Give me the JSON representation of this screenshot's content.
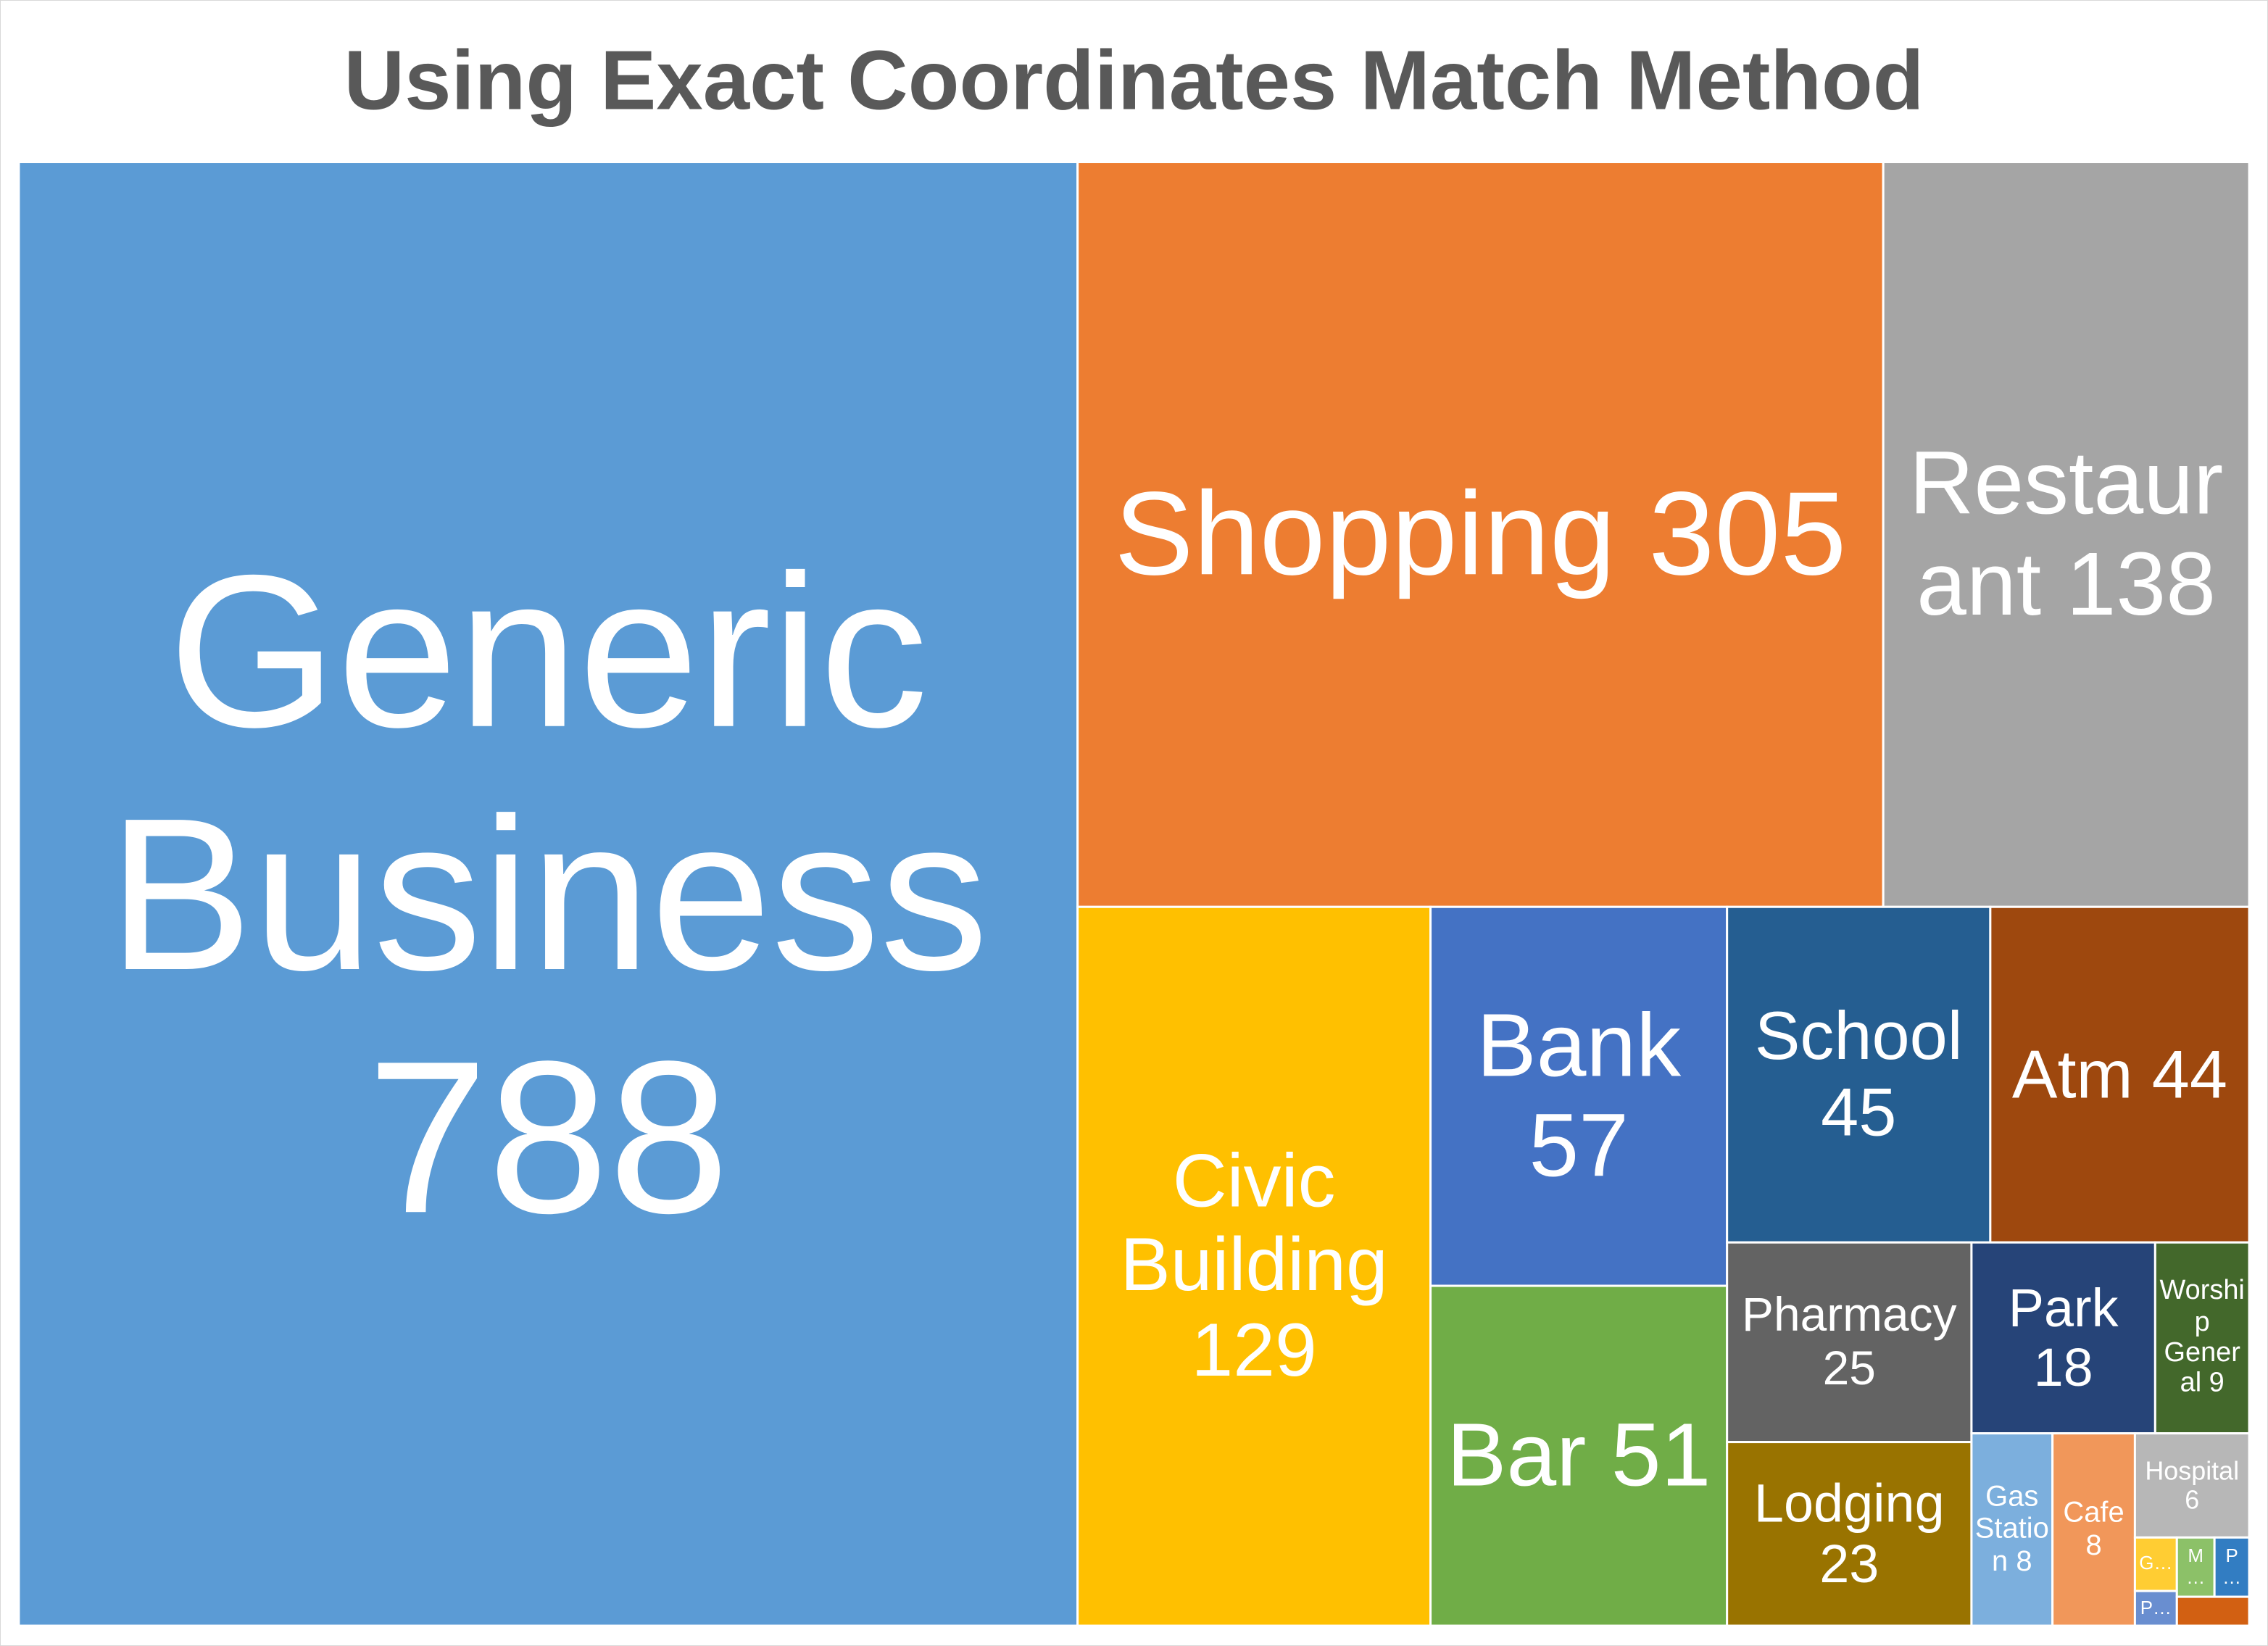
{
  "chart_data": {
    "type": "treemap",
    "title": "Using Exact Coordinates Match Method",
    "categories": [
      "Generic Business",
      "Shopping",
      "Restaurant",
      "Civic Building",
      "Bank",
      "Bar",
      "School",
      "Atm",
      "Pharmacy",
      "Lodging",
      "Park",
      "Worship General",
      "Gas Station",
      "Cafe",
      "Hospital",
      "G…",
      "P…",
      "M…",
      "P…",
      null
    ],
    "values": [
      788,
      305,
      138,
      129,
      57,
      51,
      45,
      44,
      25,
      23,
      18,
      9,
      8,
      8,
      6,
      1,
      1,
      1,
      1,
      1
    ],
    "colors": [
      "#5b9bd5",
      "#ed7d31",
      "#a5a5a5",
      "#ffc000",
      "#4472c4",
      "#70ad47",
      "#255e91",
      "#9e480e",
      "#636363",
      "#997300",
      "#264478",
      "#43682b",
      "#7cafdd",
      "#f1975a",
      "#b7b7b7",
      "#ffcd33",
      "#698ed0",
      "#8cc168",
      "#327dc2",
      "#d26012"
    ]
  }
}
